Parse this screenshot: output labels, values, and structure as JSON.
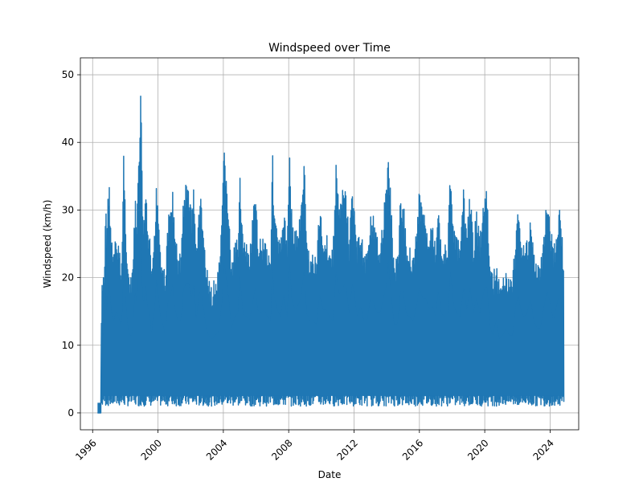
{
  "chart_data": {
    "type": "line",
    "title": "Windspeed over Time",
    "xlabel": "Date",
    "ylabel": "Windspeed (km/h)",
    "xlim": [
      1995.25,
      2025.75
    ],
    "ylim": [
      -2.5,
      52.5
    ],
    "xticks": [
      1996,
      2000,
      2004,
      2008,
      2012,
      2016,
      2020,
      2024
    ],
    "yticks": [
      0,
      10,
      20,
      30,
      40,
      50
    ],
    "grid": true,
    "legend": "none",
    "series": [
      {
        "color": "#1f77b4",
        "x_start": 1996.3,
        "x_end": 2024.85,
        "sample_step_years": 0.04,
        "daily_max": [
          [
            1996.3,
            0
          ],
          [
            1996.5,
            0
          ],
          [
            1996.55,
            19
          ],
          [
            1996.65,
            20
          ],
          [
            1996.75,
            23
          ],
          [
            1996.8,
            35
          ],
          [
            1996.85,
            26
          ],
          [
            1996.95,
            33
          ],
          [
            1997.0,
            35
          ],
          [
            1997.1,
            29
          ],
          [
            1997.2,
            25
          ],
          [
            1997.3,
            24
          ],
          [
            1997.4,
            26
          ],
          [
            1997.5,
            26
          ],
          [
            1997.6,
            25
          ],
          [
            1997.7,
            23
          ],
          [
            1997.8,
            24
          ],
          [
            1997.9,
            39
          ],
          [
            1998.0,
            31
          ],
          [
            1998.1,
            25
          ],
          [
            1998.2,
            21
          ],
          [
            1998.3,
            20
          ],
          [
            1998.4,
            20
          ],
          [
            1998.5,
            25
          ],
          [
            1998.6,
            32
          ],
          [
            1998.7,
            29
          ],
          [
            1998.8,
            36
          ],
          [
            1998.85,
            38
          ],
          [
            1998.95,
            50
          ],
          [
            1999.05,
            30
          ],
          [
            1999.15,
            29
          ],
          [
            1999.25,
            34
          ],
          [
            1999.35,
            28
          ],
          [
            1999.5,
            26
          ],
          [
            1999.6,
            20
          ],
          [
            1999.7,
            25
          ],
          [
            1999.8,
            27
          ],
          [
            1999.9,
            35
          ],
          [
            2000.0,
            32
          ],
          [
            2000.15,
            25
          ],
          [
            2000.3,
            23
          ],
          [
            2000.45,
            20
          ],
          [
            2000.6,
            29
          ],
          [
            2000.75,
            30
          ],
          [
            2000.9,
            34
          ],
          [
            2001.0,
            28
          ],
          [
            2001.2,
            24
          ],
          [
            2001.4,
            24
          ],
          [
            2001.55,
            32
          ],
          [
            2001.7,
            34
          ],
          [
            2001.9,
            34
          ],
          [
            2002.05,
            30
          ],
          [
            2002.2,
            34
          ],
          [
            2002.35,
            24
          ],
          [
            2002.5,
            31
          ],
          [
            2002.65,
            32
          ],
          [
            2002.8,
            27
          ],
          [
            2002.95,
            22
          ],
          [
            2003.1,
            20
          ],
          [
            2003.3,
            19
          ],
          [
            2003.5,
            20
          ],
          [
            2003.7,
            21
          ],
          [
            2003.9,
            28
          ],
          [
            2004.05,
            40
          ],
          [
            2004.2,
            35
          ],
          [
            2004.35,
            29
          ],
          [
            2004.5,
            22
          ],
          [
            2004.7,
            25
          ],
          [
            2004.9,
            26
          ],
          [
            2005.0,
            37
          ],
          [
            2005.2,
            26
          ],
          [
            2005.4,
            25
          ],
          [
            2005.6,
            24
          ],
          [
            2005.8,
            29
          ],
          [
            2005.95,
            33
          ],
          [
            2006.1,
            27
          ],
          [
            2006.3,
            26
          ],
          [
            2006.5,
            27
          ],
          [
            2006.7,
            25
          ],
          [
            2006.9,
            24
          ],
          [
            2007.0,
            40
          ],
          [
            2007.1,
            31
          ],
          [
            2007.3,
            27
          ],
          [
            2007.5,
            25
          ],
          [
            2007.7,
            31
          ],
          [
            2007.9,
            25
          ],
          [
            2008.05,
            40
          ],
          [
            2008.2,
            29
          ],
          [
            2008.4,
            27
          ],
          [
            2008.55,
            28
          ],
          [
            2008.75,
            30
          ],
          [
            2008.95,
            38
          ],
          [
            2009.1,
            26
          ],
          [
            2009.3,
            24
          ],
          [
            2009.5,
            24
          ],
          [
            2009.7,
            23
          ],
          [
            2009.9,
            31
          ],
          [
            2010.1,
            27
          ],
          [
            2010.3,
            27
          ],
          [
            2010.5,
            25
          ],
          [
            2010.7,
            24
          ],
          [
            2010.9,
            37
          ],
          [
            2011.1,
            31
          ],
          [
            2011.3,
            33
          ],
          [
            2011.5,
            34
          ],
          [
            2011.7,
            26
          ],
          [
            2011.9,
            34
          ],
          [
            2012.05,
            30
          ],
          [
            2012.2,
            25
          ],
          [
            2012.4,
            28
          ],
          [
            2012.6,
            24
          ],
          [
            2012.8,
            24
          ],
          [
            2013.0,
            30
          ],
          [
            2013.2,
            29
          ],
          [
            2013.4,
            26
          ],
          [
            2013.6,
            26
          ],
          [
            2013.8,
            30
          ],
          [
            2014.0,
            34
          ],
          [
            2014.1,
            40
          ],
          [
            2014.25,
            32
          ],
          [
            2014.45,
            23
          ],
          [
            2014.65,
            23
          ],
          [
            2014.85,
            32
          ],
          [
            2015.0,
            32
          ],
          [
            2015.2,
            26
          ],
          [
            2015.4,
            25
          ],
          [
            2015.6,
            24
          ],
          [
            2015.8,
            27
          ],
          [
            2016.0,
            33
          ],
          [
            2016.2,
            30
          ],
          [
            2016.4,
            30
          ],
          [
            2016.6,
            27
          ],
          [
            2016.8,
            28
          ],
          [
            2017.0,
            25
          ],
          [
            2017.15,
            32
          ],
          [
            2017.35,
            26
          ],
          [
            2017.55,
            25
          ],
          [
            2017.75,
            26
          ],
          [
            2017.9,
            37
          ],
          [
            2018.1,
            28
          ],
          [
            2018.3,
            26
          ],
          [
            2018.5,
            25
          ],
          [
            2018.7,
            33
          ],
          [
            2018.9,
            27
          ],
          [
            2019.1,
            33
          ],
          [
            2019.3,
            26
          ],
          [
            2019.5,
            30
          ],
          [
            2019.7,
            26
          ],
          [
            2019.9,
            31
          ],
          [
            2020.0,
            33
          ],
          [
            2020.15,
            33
          ],
          [
            2020.3,
            23
          ],
          [
            2020.5,
            20
          ],
          [
            2020.7,
            24
          ],
          [
            2020.9,
            19
          ],
          [
            2021.1,
            20
          ],
          [
            2021.3,
            22
          ],
          [
            2021.5,
            20
          ],
          [
            2021.7,
            20
          ],
          [
            2021.9,
            28
          ],
          [
            2022.05,
            31
          ],
          [
            2022.2,
            27
          ],
          [
            2022.4,
            25
          ],
          [
            2022.6,
            26
          ],
          [
            2022.8,
            30
          ],
          [
            2023.0,
            24
          ],
          [
            2023.2,
            22
          ],
          [
            2023.4,
            22
          ],
          [
            2023.6,
            27
          ],
          [
            2023.8,
            32
          ],
          [
            2024.0,
            29
          ],
          [
            2024.2,
            24
          ],
          [
            2024.4,
            28
          ],
          [
            2024.6,
            32
          ],
          [
            2024.85,
            22
          ]
        ],
        "daily_min": [
          [
            1996.3,
            0
          ],
          [
            1996.5,
            0
          ],
          [
            1996.6,
            1
          ],
          [
            2024.8,
            1
          ],
          [
            2024.85,
            0
          ]
        ]
      }
    ]
  }
}
